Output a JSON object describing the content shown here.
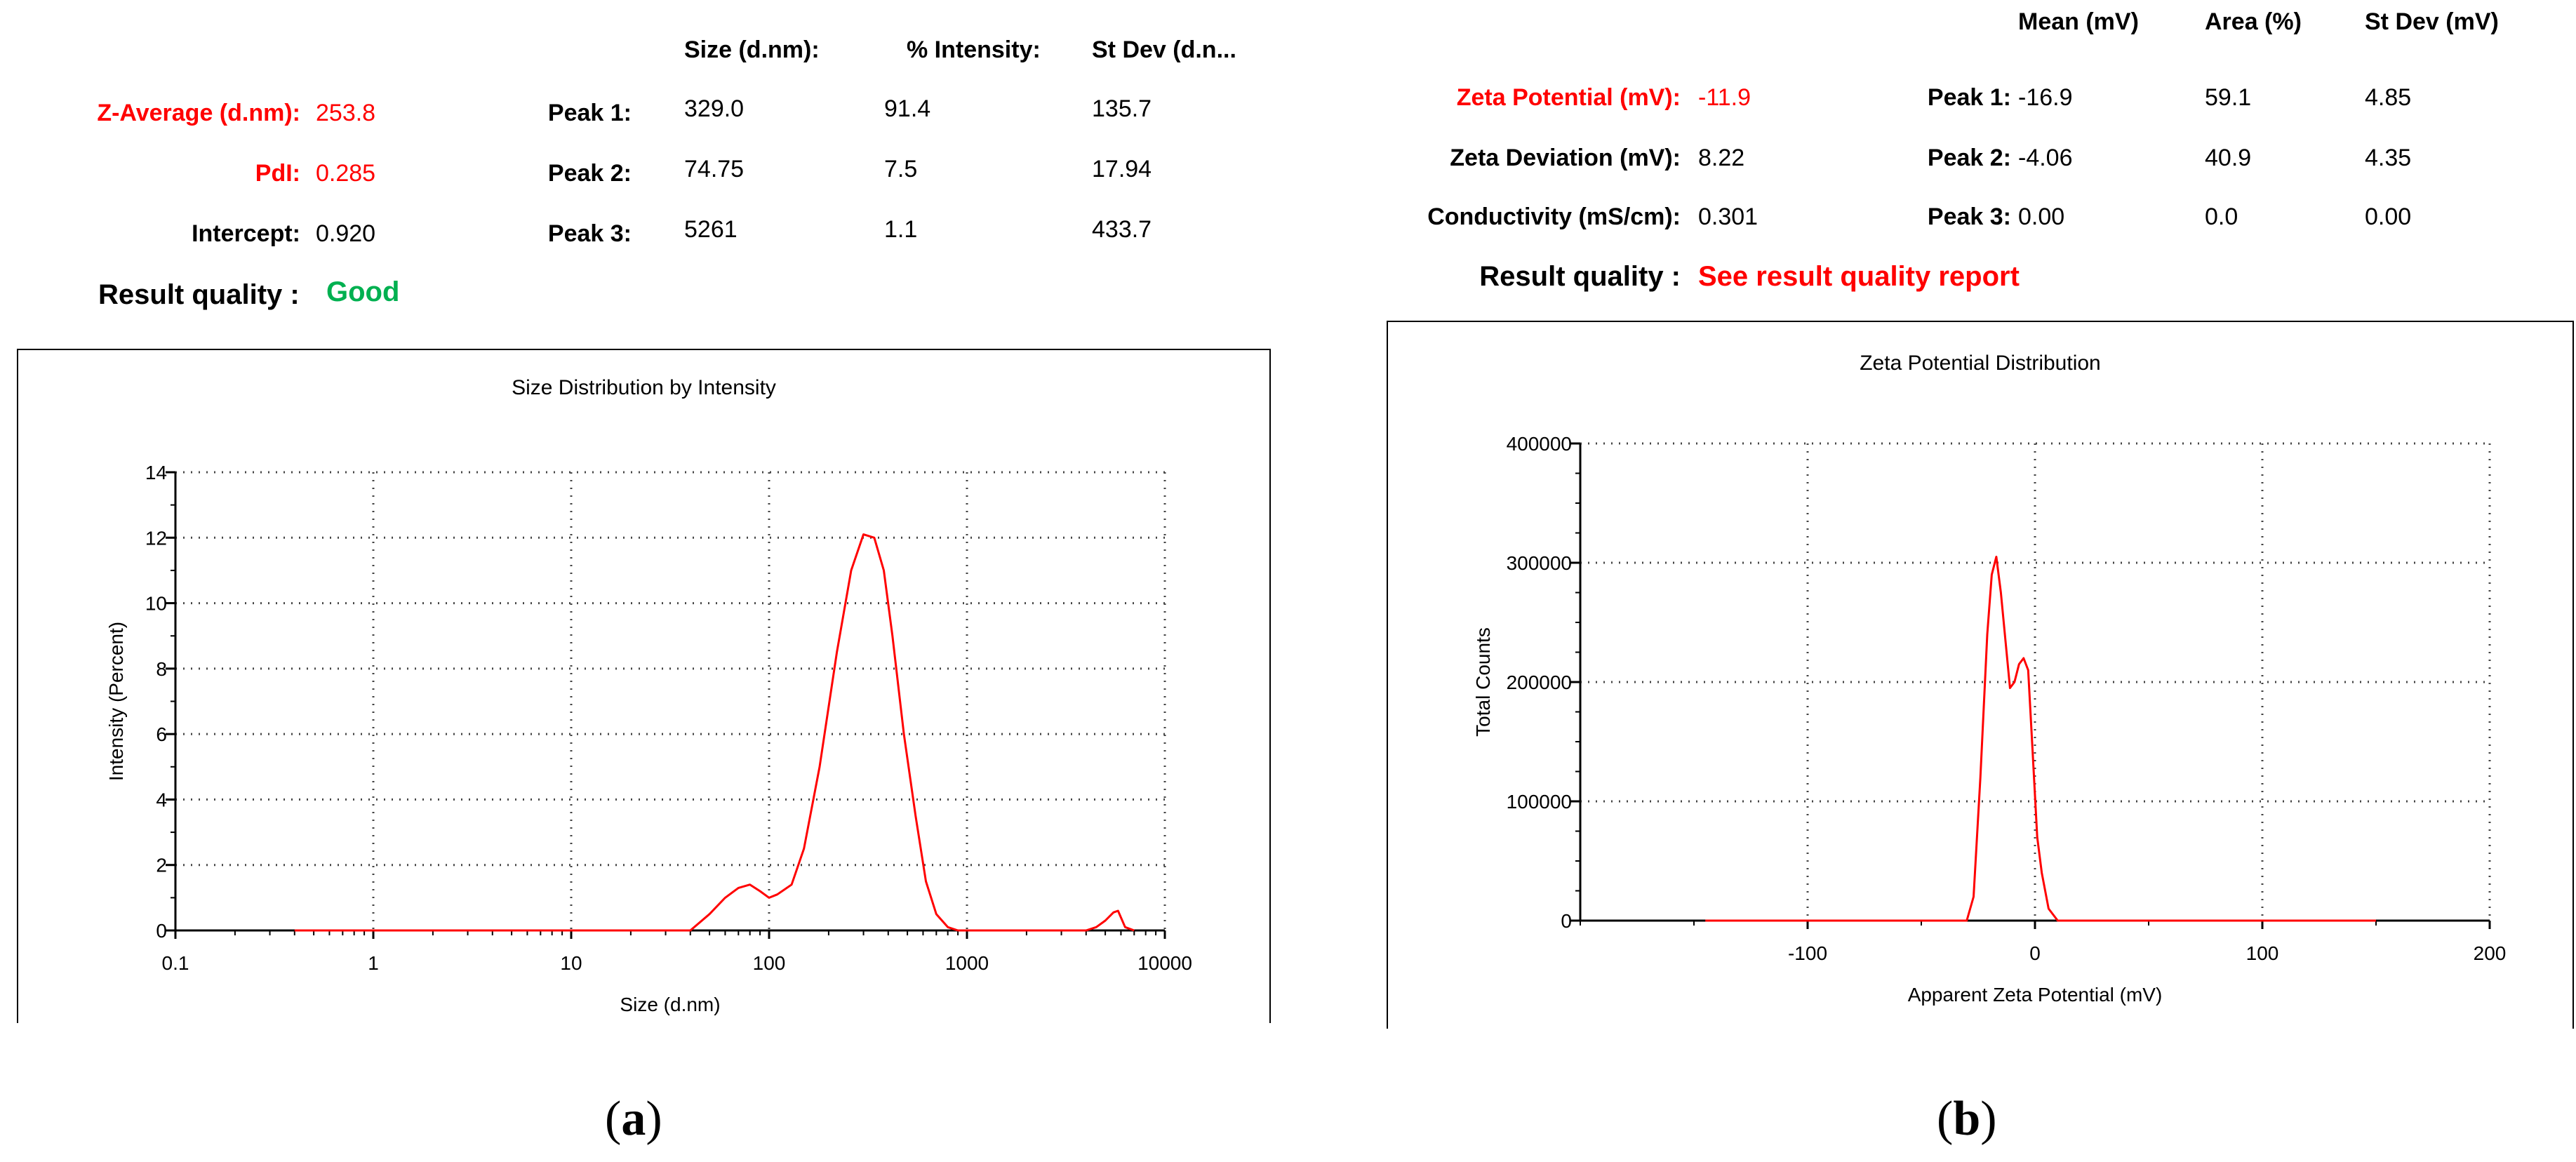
{
  "panel_a": {
    "headers": {
      "size": "Size (d.nm):",
      "intensity": "% Intensity:",
      "stdev": "St Dev (d.n..."
    },
    "z_average": {
      "label": "Z-Average (d.nm):",
      "value": "253.8"
    },
    "pdi": {
      "label": "PdI:",
      "value": "0.285"
    },
    "intercept": {
      "label": "Intercept:",
      "value": "0.920"
    },
    "result_quality": {
      "label": "Result quality :",
      "value": "Good"
    },
    "peaks": [
      {
        "label": "Peak 1:",
        "size": "329.0",
        "intensity": "91.4",
        "stdev": "135.7"
      },
      {
        "label": "Peak 2:",
        "size": "74.75",
        "intensity": "7.5",
        "stdev": "17.94"
      },
      {
        "label": "Peak 3:",
        "size": "5261",
        "intensity": "1.1",
        "stdev": "433.7"
      }
    ],
    "caption": {
      "open": "(",
      "letter": "a",
      "close": ")"
    }
  },
  "panel_b": {
    "headers": {
      "mean": "Mean (mV)",
      "area": "Area (%)",
      "stdev": "St Dev (mV)"
    },
    "zeta_potential": {
      "label": "Zeta Potential (mV):",
      "value": "-11.9"
    },
    "zeta_deviation": {
      "label": "Zeta Deviation (mV):",
      "value": "8.22"
    },
    "conductivity": {
      "label": "Conductivity (mS/cm):",
      "value": "0.301"
    },
    "result_quality": {
      "label": "Result quality :",
      "value": "See result quality report"
    },
    "peaks": [
      {
        "label": "Peak 1:",
        "mean": "-16.9",
        "area": "59.1",
        "stdev": "4.85"
      },
      {
        "label": "Peak 2:",
        "mean": "-4.06",
        "area": "40.9",
        "stdev": "4.35"
      },
      {
        "label": "Peak 3:",
        "mean": "0.00",
        "area": "0.0",
        "stdev": "0.00"
      }
    ],
    "caption": {
      "open": "(",
      "letter": "b",
      "close": ")"
    }
  },
  "colors": {
    "accent_red": "#ff0000",
    "good_green": "#00b050",
    "grid": "#444444"
  },
  "chart_data": [
    {
      "type": "line",
      "title": "Size Distribution by Intensity",
      "xlabel": "Size (d.nm)",
      "ylabel": "Intensity (Percent)",
      "xscale": "log",
      "xlim": [
        0.1,
        10000
      ],
      "ylim": [
        0,
        14
      ],
      "xticks": [
        0.1,
        1,
        10,
        100,
        1000,
        10000
      ],
      "xtick_labels": [
        "0.1",
        "1",
        "10",
        "100",
        "1000",
        "10000"
      ],
      "yticks": [
        0,
        2,
        4,
        6,
        8,
        10,
        12,
        14
      ],
      "ytick_labels": [
        "0",
        "2",
        "4",
        "6",
        "8",
        "10",
        "12",
        "14"
      ],
      "grid": true,
      "series": [
        {
          "color": "#ff0000",
          "x": [
            0.4,
            40,
            50,
            60,
            70,
            80,
            90,
            100,
            110,
            130,
            150,
            180,
            220,
            260,
            300,
            340,
            380,
            420,
            480,
            550,
            620,
            700,
            800,
            900,
            1000,
            1100,
            4000,
            4500,
            5000,
            5500,
            5800,
            6300,
            7000
          ],
          "y": [
            0,
            0,
            0.5,
            1.0,
            1.3,
            1.4,
            1.2,
            1.0,
            1.1,
            1.4,
            2.5,
            5.0,
            8.5,
            11.0,
            12.1,
            12.0,
            11.0,
            9.0,
            6.0,
            3.5,
            1.5,
            0.5,
            0.1,
            0,
            0,
            0,
            0,
            0.1,
            0.3,
            0.55,
            0.6,
            0.1,
            0
          ]
        }
      ]
    },
    {
      "type": "line",
      "title": "Zeta Potential Distribution",
      "xlabel": "Apparent Zeta Potential (mV)",
      "ylabel": "Total Counts",
      "xlim": [
        -200,
        200
      ],
      "ylim": [
        0,
        400000
      ],
      "xticks": [
        -100,
        0,
        100,
        200
      ],
      "xtick_labels": [
        "-100",
        "0",
        "100",
        "200"
      ],
      "yticks": [
        0,
        100000,
        200000,
        300000,
        400000
      ],
      "ytick_labels": [
        "0",
        "100000",
        "200000",
        "300000",
        "400000"
      ],
      "grid": true,
      "series": [
        {
          "color": "#ff0000",
          "x": [
            -145,
            -30,
            -27,
            -24,
            -21,
            -19,
            -17,
            -15,
            -13,
            -11,
            -9,
            -7,
            -5,
            -3,
            -1,
            1,
            3,
            6,
            10,
            150
          ],
          "y": [
            0,
            0,
            20000,
            120000,
            240000,
            290000,
            305000,
            275000,
            235000,
            195000,
            200000,
            215000,
            220000,
            210000,
            140000,
            70000,
            40000,
            10000,
            0,
            0
          ]
        }
      ]
    }
  ]
}
